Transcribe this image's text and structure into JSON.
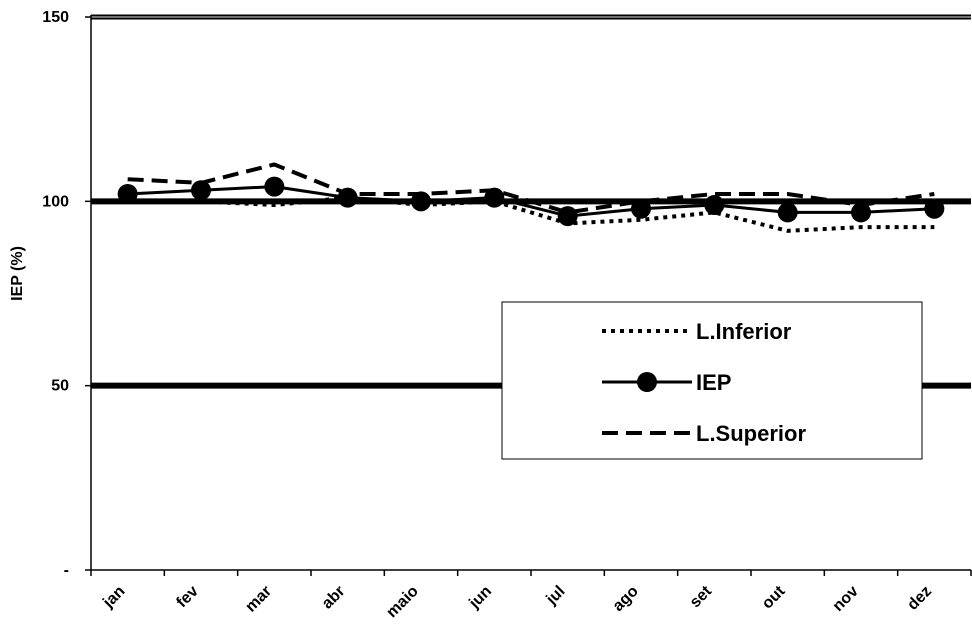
{
  "chart_data": {
    "type": "line",
    "categories": [
      "jan",
      "fev",
      "mar",
      "abr",
      "maio",
      "jun",
      "jul",
      "ago",
      "set",
      "out",
      "nov",
      "dez"
    ],
    "ylabel": "IEP (%)",
    "ylim": [
      0,
      150
    ],
    "y_ticks": [
      {
        "value": 0,
        "label": "-"
      },
      {
        "value": 50,
        "label": "50"
      },
      {
        "value": 100,
        "label": "100"
      },
      {
        "value": 150,
        "label": "150"
      }
    ],
    "reference_lines": [
      50,
      100,
      150
    ],
    "legend_position": "center-right",
    "series": [
      {
        "name": "L.Inferior",
        "style": "dotted",
        "color": "#000000",
        "values": [
          100,
          100,
          99,
          101,
          99,
          100,
          94,
          95,
          97,
          92,
          93,
          93
        ]
      },
      {
        "name": "IEP",
        "style": "solid-marker",
        "color": "#000000",
        "values": [
          102,
          103,
          104,
          101,
          100,
          101,
          96,
          98,
          99,
          97,
          97,
          98
        ]
      },
      {
        "name": "L.Superior",
        "style": "dashed",
        "color": "#000000",
        "values": [
          106,
          105,
          110,
          102,
          102,
          103,
          97,
          100,
          102,
          102,
          99,
          102
        ]
      }
    ]
  }
}
